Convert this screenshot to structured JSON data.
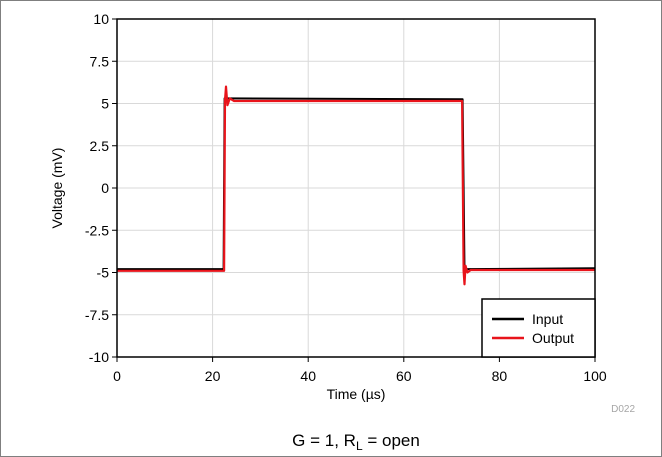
{
  "chart_data": {
    "type": "line",
    "xlabel": "Time (µs)",
    "ylabel": "Voltage (mV)",
    "xlim": [
      0,
      100
    ],
    "ylim": [
      -10,
      10
    ],
    "xticks": [
      "0",
      "20",
      "40",
      "60",
      "80",
      "100"
    ],
    "yticks": [
      "10",
      "7.5",
      "5",
      "2.5",
      "0",
      "-2.5",
      "-5",
      "-7.5",
      "-10"
    ],
    "grid": true,
    "legend_position": "bottom-right",
    "series": [
      {
        "name": "Input",
        "color": "#000000",
        "x": [
          0,
          22.3,
          22.5,
          23.0,
          72.3,
          72.7,
          73.2,
          100
        ],
        "y": [
          -4.8,
          -4.8,
          5.3,
          5.3,
          5.25,
          -4.8,
          -4.8,
          -4.75
        ]
      },
      {
        "name": "Output",
        "color": "#e8141b",
        "x": [
          0,
          22.4,
          22.6,
          22.8,
          23.1,
          23.6,
          24.5,
          72.2,
          72.5,
          72.7,
          72.9,
          73.3,
          74.0,
          100
        ],
        "y": [
          -4.9,
          -4.9,
          5.2,
          6.0,
          4.9,
          5.3,
          5.15,
          5.15,
          -4.9,
          -5.7,
          -4.6,
          -5.0,
          -4.85,
          -4.85
        ]
      }
    ],
    "code": "D022",
    "caption": {
      "main": "G = 1, R",
      "sub": "L",
      "tail": " = open"
    }
  }
}
